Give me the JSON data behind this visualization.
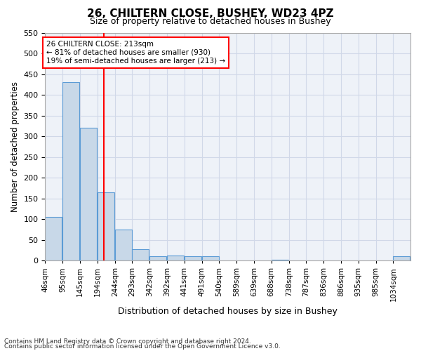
{
  "title1": "26, CHILTERN CLOSE, BUSHEY, WD23 4PZ",
  "title2": "Size of property relative to detached houses in Bushey",
  "xlabel": "Distribution of detached houses by size in Bushey",
  "ylabel": "Number of detached properties",
  "bar_color": "#c8d8e8",
  "bar_edgecolor": "#5b9bd5",
  "bin_labels": [
    "46sqm",
    "95sqm",
    "145sqm",
    "194sqm",
    "244sqm",
    "293sqm",
    "342sqm",
    "392sqm",
    "441sqm",
    "491sqm",
    "540sqm",
    "589sqm",
    "639sqm",
    "688sqm",
    "738sqm",
    "787sqm",
    "836sqm",
    "886sqm",
    "935sqm",
    "985sqm",
    "1034sqm"
  ],
  "bar_values": [
    105,
    430,
    320,
    165,
    75,
    27,
    10,
    12,
    10,
    10,
    0,
    0,
    0,
    2,
    0,
    0,
    0,
    0,
    0,
    0,
    10
  ],
  "bin_edges": [
    46,
    95,
    145,
    194,
    244,
    293,
    342,
    392,
    441,
    491,
    540,
    589,
    639,
    688,
    738,
    787,
    836,
    886,
    935,
    985,
    1034
  ],
  "red_line_x": 213,
  "annotation_text": "26 CHILTERN CLOSE: 213sqm\n← 81% of detached houses are smaller (930)\n19% of semi-detached houses are larger (213) →",
  "ylim": [
    0,
    550
  ],
  "yticks": [
    0,
    50,
    100,
    150,
    200,
    250,
    300,
    350,
    400,
    450,
    500,
    550
  ],
  "grid_color": "#d0d8e8",
  "bg_color": "#eef2f8",
  "footnote1": "Contains HM Land Registry data © Crown copyright and database right 2024.",
  "footnote2": "Contains public sector information licensed under the Open Government Licence v3.0."
}
